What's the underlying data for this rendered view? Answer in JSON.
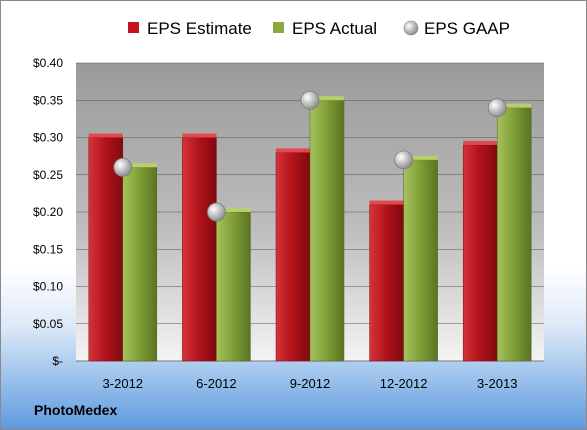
{
  "source_label": "PhotoMedex",
  "chart_data": {
    "type": "bar",
    "categories": [
      "3-2012",
      "6-2012",
      "9-2012",
      "12-2012",
      "3-2013"
    ],
    "series": [
      {
        "name": "EPS Estimate",
        "kind": "bar",
        "color": "#c4151c",
        "values": [
          0.3,
          0.3,
          0.28,
          0.21,
          0.29
        ]
      },
      {
        "name": "EPS Actual",
        "kind": "bar",
        "color": "#8aab3e",
        "values": [
          0.26,
          0.2,
          0.35,
          0.27,
          0.34
        ]
      },
      {
        "name": "EPS GAAP",
        "kind": "marker",
        "color": "#b0b0b0",
        "values": [
          0.26,
          0.2,
          0.35,
          0.27,
          0.34
        ]
      }
    ],
    "y_ticks": [
      "$-",
      "$0.05",
      "$0.10",
      "$0.15",
      "$0.20",
      "$0.25",
      "$0.30",
      "$0.35",
      "$0.40"
    ],
    "ylim": [
      0,
      0.4
    ],
    "legend_position": "top",
    "grid": true
  }
}
